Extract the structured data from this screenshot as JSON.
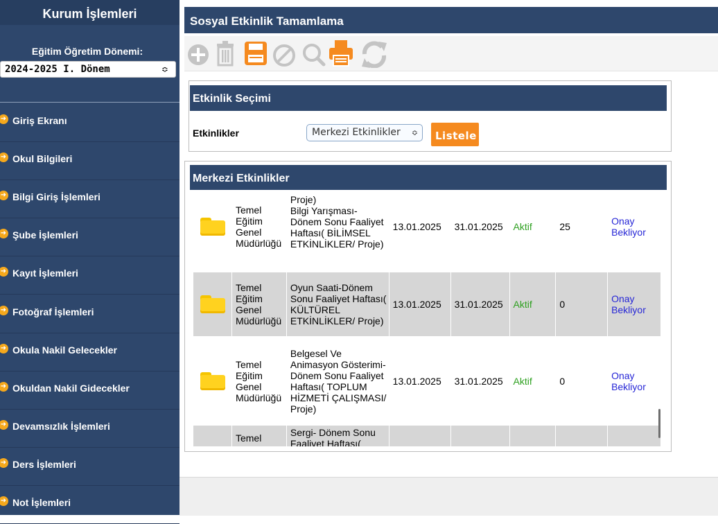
{
  "sidebar": {
    "title": "Kurum İşlemleri",
    "period_label": "Eğitim Öğretim Dönemi:",
    "period_value": "2024-2025 I. Dönem",
    "items": [
      {
        "label": "Giriş Ekranı"
      },
      {
        "label": "Okul Bilgileri"
      },
      {
        "label": "Bilgi Giriş İşlemleri"
      },
      {
        "label": "Şube İşlemleri"
      },
      {
        "label": "Kayıt İşlemleri"
      },
      {
        "label": "Fotoğraf İşlemleri"
      },
      {
        "label": "Okula Nakil Gelecekler"
      },
      {
        "label": "Okuldan Nakil Gidecekler"
      },
      {
        "label": "Devamsızlık İşlemleri"
      },
      {
        "label": "Ders İşlemleri"
      },
      {
        "label": "Not İşlemleri"
      }
    ]
  },
  "header": {
    "title": "Sosyal Etkinlik Tamamlama"
  },
  "toolbar": {
    "icons": [
      "add-icon",
      "trash-icon",
      "save-icon",
      "cancel-icon",
      "search-icon",
      "print-icon",
      "refresh-icon"
    ],
    "accent_color": "#f58a1f",
    "disabled_color": "#c4c4c4"
  },
  "selection_panel": {
    "title": "Etkinlik Seçimi",
    "label": "Etkinlikler",
    "select_value": "Merkezi Etkinlikler",
    "button_label": "Listele"
  },
  "list_panel": {
    "title": "Merkezi Etkinlikler",
    "partial_top": "Proje)",
    "rows": [
      {
        "org": "Temel Eğitim Genel Müdürlüğü",
        "name": "Bilgi Yarışması-Dönem Sonu Faaliyet Haftası( BİLİMSEL ETKİNLİKLER/ Proje)",
        "start": "13.01.2025",
        "end": "31.01.2025",
        "status": "Aktif",
        "count": "25",
        "approval": "Onay Bekliyor"
      },
      {
        "org": "Temel Eğitim Genel Müdürlüğü",
        "name": "Oyun Saati-Dönem Sonu Faaliyet Haftası( KÜLTÜREL ETKİNLİKLER/ Proje)",
        "start": "13.01.2025",
        "end": "31.01.2025",
        "status": "Aktif",
        "count": "0",
        "approval": "Onay Bekliyor"
      },
      {
        "org": "Temel Eğitim Genel Müdürlüğü",
        "name": "Belgesel Ve Animasyon Gösterimi- Dönem Sonu Faaliyet Haftası( TOPLUM HİZMETİ ÇALIŞMASI/ Proje)",
        "start": "13.01.2025",
        "end": "31.01.2025",
        "status": "Aktif",
        "count": "0",
        "approval": "Onay Bekliyor"
      },
      {
        "org": "Temel",
        "name": "Sergi- Dönem Sonu Faaliyet Haftası(",
        "start": "",
        "end": "",
        "status": "",
        "count": "",
        "approval": ""
      }
    ]
  },
  "colors": {
    "nav": "#2e476c",
    "status_active": "#2ea020",
    "approval_link": "#2626d6"
  }
}
